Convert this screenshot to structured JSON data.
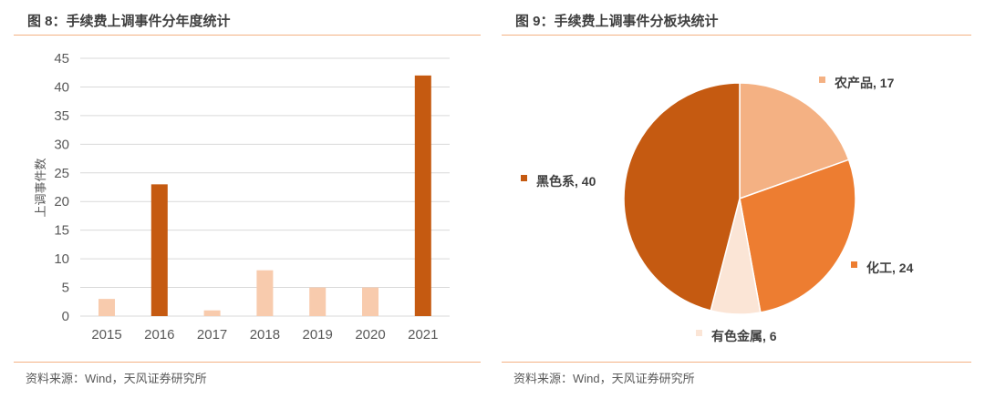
{
  "left": {
    "title": "图 8：手续费上调事件分年度统计",
    "source": "资料来源：Wind，天风证券研究所"
  },
  "right": {
    "title": "图 9：手续费上调事件分板块统计",
    "source": "资料来源：Wind，天风证券研究所"
  },
  "chart_data": [
    {
      "type": "bar",
      "title": "",
      "xlabel": "",
      "ylabel": "上调事件数",
      "ylim": [
        0,
        45
      ],
      "yticks": [
        0,
        5,
        10,
        15,
        20,
        25,
        30,
        35,
        40,
        45
      ],
      "grid": true,
      "categories": [
        "2015",
        "2016",
        "2017",
        "2018",
        "2019",
        "2020",
        "2021"
      ],
      "values": [
        3,
        23,
        1,
        8,
        5,
        5,
        42
      ],
      "colors": [
        "#F8CBAD",
        "#C55A11",
        "#F8CBAD",
        "#F8CBAD",
        "#F8CBAD",
        "#F8CBAD",
        "#C55A11"
      ]
    },
    {
      "type": "pie",
      "title": "",
      "slices": [
        {
          "label": "农产品",
          "value": 17,
          "color": "#F4B183"
        },
        {
          "label": "化工",
          "value": 24,
          "color": "#ED7D31"
        },
        {
          "label": "有色金属",
          "value": 6,
          "color": "#FBE5D6"
        },
        {
          "label": "黑色系",
          "value": 40,
          "color": "#C55A11"
        }
      ]
    }
  ]
}
